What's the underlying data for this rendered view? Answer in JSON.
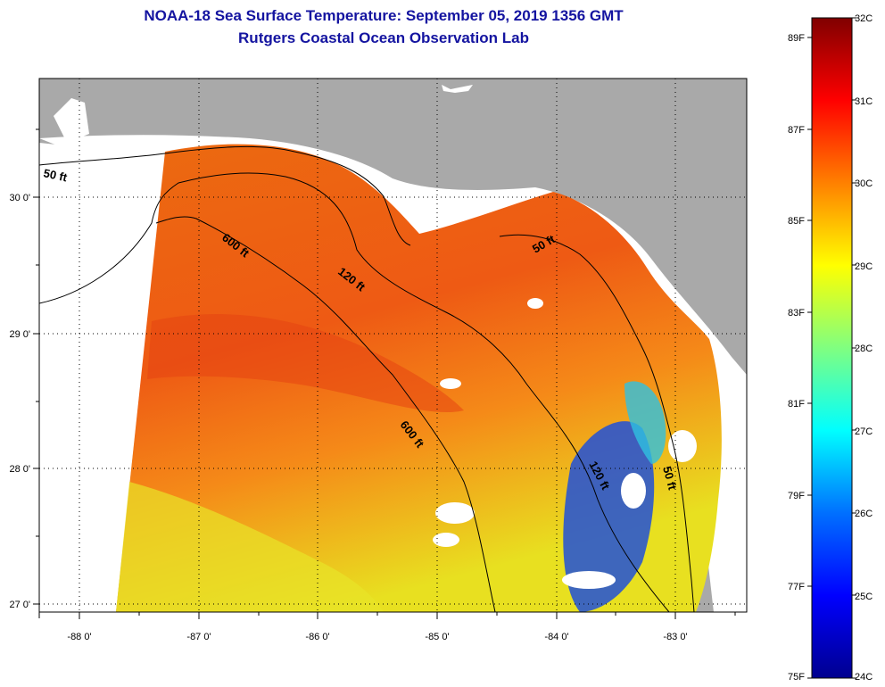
{
  "header": {
    "title": "NOAA-18 Sea Surface Temperature:  September 05, 2019 1356 GMT",
    "subtitle": "Rutgers Coastal Ocean Observation Lab"
  },
  "map": {
    "lon_ticks": [
      "-88 0'",
      "-87 0'",
      "-86 0'",
      "-85 0'",
      "-84 0'",
      "-83 0'"
    ],
    "lat_ticks": [
      "30 0'",
      "29 0'",
      "28 0'",
      "27 0'"
    ],
    "contour_labels": [
      "50 ft",
      "600 ft",
      "120 ft",
      "50 ft",
      "600 ft",
      "120 ft",
      "50 ft"
    ],
    "colors": {
      "land": "#a9a9a9",
      "water_warm": "#f07a14",
      "water_hot": "#e84e12",
      "cool": "#1e5adc"
    }
  },
  "colorbar": {
    "celsius": [
      "32C",
      "31C",
      "30C",
      "29C",
      "28C",
      "27C",
      "26C",
      "25C",
      "24C"
    ],
    "fahrenheit": [
      "89F",
      "87F",
      "85F",
      "83F",
      "81F",
      "79F",
      "77F",
      "75F"
    ]
  }
}
